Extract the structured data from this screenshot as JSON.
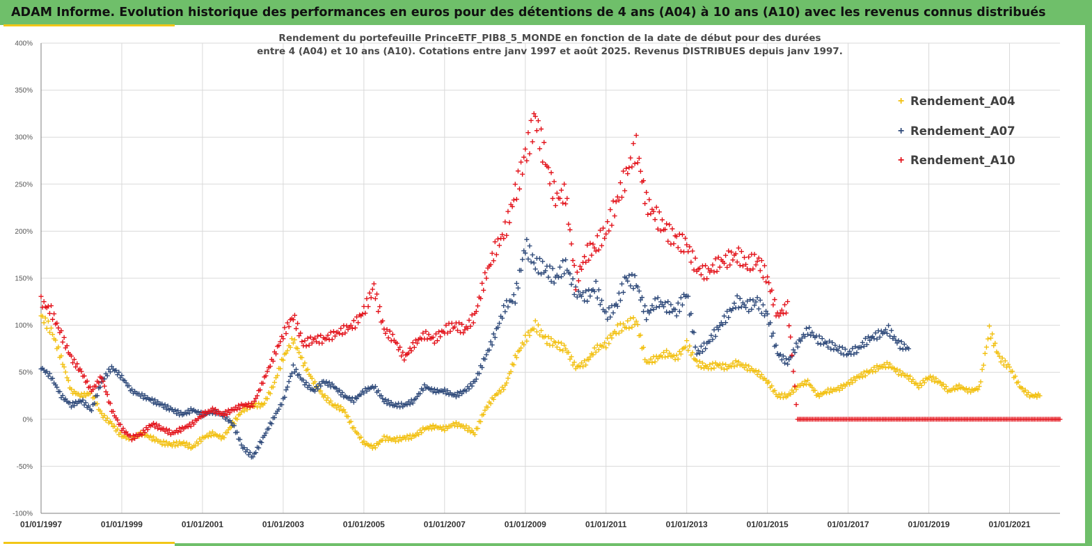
{
  "banner": {
    "title": "ADAM Informe. Evolution historique des performances en euros pour des détentions de 4 ans (A04) à 10 ans (A10) avec les revenus connus distribués"
  },
  "colors": {
    "banner": "#6fbf6a",
    "accent": "#f2c617",
    "series_a04": "#f2c010",
    "series_a07": "#2f4a7a",
    "series_a10": "#e3131b",
    "grid": "#d9d9d9"
  },
  "chart_data": {
    "type": "scatter",
    "title_lines": [
      "Rendement du portefeuille PrinceETF_PIB8_5_MONDE  en fonction de la date de début pour des durées",
      "entre 4 (A04) et 10 ans (A10). Cotations entre janv 1997 et août 2025. Revenus DISTRIBUES depuis janv 1997."
    ],
    "xlabel": "",
    "ylabel": "",
    "x_format": "date (year)",
    "xlim": [
      1997.0,
      2022.25
    ],
    "ylim": [
      -100,
      400
    ],
    "y_unit": "%",
    "y_ticks": [
      "400%",
      "350%",
      "300%",
      "250%",
      "200%",
      "150%",
      "100%",
      "50%",
      "0%",
      "-50%",
      "-100%"
    ],
    "x_ticks": [
      "01/01/1997",
      "01/01/1999",
      "01/01/2001",
      "01/01/2003",
      "01/01/2005",
      "01/01/2007",
      "01/01/2009",
      "01/01/2011",
      "01/01/2013",
      "01/01/2015",
      "01/01/2017",
      "01/01/2019",
      "01/01/2021"
    ],
    "grid": true,
    "legend_position": "top-right",
    "marker": "+",
    "series": [
      {
        "name": "Rendement_A04",
        "color": "#f2c010",
        "points": [
          [
            1997.0,
            110
          ],
          [
            1997.25,
            95
          ],
          [
            1997.5,
            65
          ],
          [
            1997.75,
            30
          ],
          [
            1998.0,
            25
          ],
          [
            1998.25,
            28
          ],
          [
            1998.5,
            5
          ],
          [
            1998.75,
            -5
          ],
          [
            1999.0,
            -18
          ],
          [
            1999.25,
            -20
          ],
          [
            1999.5,
            -15
          ],
          [
            1999.75,
            -20
          ],
          [
            2000.0,
            -25
          ],
          [
            2000.25,
            -27
          ],
          [
            2000.5,
            -25
          ],
          [
            2000.75,
            -30
          ],
          [
            2001.0,
            -20
          ],
          [
            2001.25,
            -15
          ],
          [
            2001.5,
            -20
          ],
          [
            2001.75,
            -5
          ],
          [
            2002.0,
            10
          ],
          [
            2002.25,
            15
          ],
          [
            2002.5,
            15
          ],
          [
            2002.75,
            35
          ],
          [
            2003.0,
            65
          ],
          [
            2003.25,
            85
          ],
          [
            2003.5,
            60
          ],
          [
            2003.75,
            40
          ],
          [
            2004.0,
            25
          ],
          [
            2004.25,
            15
          ],
          [
            2004.5,
            10
          ],
          [
            2004.75,
            -10
          ],
          [
            2005.0,
            -25
          ],
          [
            2005.25,
            -30
          ],
          [
            2005.5,
            -20
          ],
          [
            2005.75,
            -22
          ],
          [
            2006.0,
            -20
          ],
          [
            2006.25,
            -18
          ],
          [
            2006.5,
            -10
          ],
          [
            2006.75,
            -8
          ],
          [
            2007.0,
            -10
          ],
          [
            2007.25,
            -5
          ],
          [
            2007.5,
            -8
          ],
          [
            2007.75,
            -15
          ],
          [
            2008.0,
            10
          ],
          [
            2008.25,
            25
          ],
          [
            2008.5,
            35
          ],
          [
            2008.75,
            65
          ],
          [
            2009.0,
            85
          ],
          [
            2009.25,
            100
          ],
          [
            2009.5,
            85
          ],
          [
            2009.75,
            80
          ],
          [
            2010.0,
            75
          ],
          [
            2010.25,
            55
          ],
          [
            2010.5,
            60
          ],
          [
            2010.75,
            75
          ],
          [
            2011.0,
            80
          ],
          [
            2011.25,
            95
          ],
          [
            2011.5,
            100
          ],
          [
            2011.75,
            105
          ],
          [
            2012.0,
            60
          ],
          [
            2012.25,
            65
          ],
          [
            2012.5,
            70
          ],
          [
            2012.75,
            65
          ],
          [
            2013.0,
            80
          ],
          [
            2013.25,
            60
          ],
          [
            2013.5,
            55
          ],
          [
            2013.75,
            58
          ],
          [
            2014.0,
            55
          ],
          [
            2014.25,
            60
          ],
          [
            2014.5,
            55
          ],
          [
            2014.75,
            50
          ],
          [
            2015.0,
            40
          ],
          [
            2015.25,
            25
          ],
          [
            2015.5,
            25
          ],
          [
            2015.75,
            35
          ],
          [
            2016.0,
            40
          ],
          [
            2016.25,
            25
          ],
          [
            2016.5,
            30
          ],
          [
            2016.75,
            32
          ],
          [
            2017.0,
            38
          ],
          [
            2017.25,
            45
          ],
          [
            2017.5,
            50
          ],
          [
            2017.75,
            55
          ],
          [
            2018.0,
            58
          ],
          [
            2018.25,
            50
          ],
          [
            2018.5,
            45
          ],
          [
            2018.75,
            35
          ],
          [
            2019.0,
            45
          ],
          [
            2019.25,
            40
          ],
          [
            2019.5,
            30
          ],
          [
            2019.75,
            35
          ],
          [
            2020.0,
            30
          ],
          [
            2020.25,
            33
          ],
          [
            2020.5,
            95
          ],
          [
            2020.75,
            65
          ],
          [
            2021.0,
            55
          ],
          [
            2021.25,
            35
          ],
          [
            2021.5,
            25
          ],
          [
            2021.75,
            25
          ]
        ]
      },
      {
        "name": "Rendement_A07",
        "color": "#2f4a7a",
        "points": [
          [
            1997.0,
            55
          ],
          [
            1997.25,
            45
          ],
          [
            1997.5,
            25
          ],
          [
            1997.75,
            15
          ],
          [
            1998.0,
            20
          ],
          [
            1998.25,
            10
          ],
          [
            1998.5,
            40
          ],
          [
            1998.75,
            55
          ],
          [
            1999.0,
            45
          ],
          [
            1999.25,
            30
          ],
          [
            1999.5,
            25
          ],
          [
            1999.75,
            20
          ],
          [
            2000.0,
            15
          ],
          [
            2000.25,
            10
          ],
          [
            2000.5,
            5
          ],
          [
            2000.75,
            10
          ],
          [
            2001.0,
            5
          ],
          [
            2001.25,
            8
          ],
          [
            2001.5,
            5
          ],
          [
            2001.75,
            -5
          ],
          [
            2002.0,
            -30
          ],
          [
            2002.25,
            -40
          ],
          [
            2002.5,
            -20
          ],
          [
            2002.75,
            0
          ],
          [
            2003.0,
            20
          ],
          [
            2003.25,
            55
          ],
          [
            2003.5,
            40
          ],
          [
            2003.75,
            30
          ],
          [
            2004.0,
            40
          ],
          [
            2004.25,
            35
          ],
          [
            2004.5,
            25
          ],
          [
            2004.75,
            20
          ],
          [
            2005.0,
            30
          ],
          [
            2005.25,
            35
          ],
          [
            2005.5,
            20
          ],
          [
            2005.75,
            15
          ],
          [
            2006.0,
            15
          ],
          [
            2006.25,
            20
          ],
          [
            2006.5,
            35
          ],
          [
            2006.75,
            30
          ],
          [
            2007.0,
            30
          ],
          [
            2007.25,
            25
          ],
          [
            2007.5,
            30
          ],
          [
            2007.75,
            40
          ],
          [
            2008.0,
            65
          ],
          [
            2008.25,
            90
          ],
          [
            2008.5,
            120
          ],
          [
            2008.75,
            130
          ],
          [
            2009.0,
            185
          ],
          [
            2009.25,
            165
          ],
          [
            2009.5,
            160
          ],
          [
            2009.75,
            150
          ],
          [
            2010.0,
            165
          ],
          [
            2010.25,
            135
          ],
          [
            2010.5,
            130
          ],
          [
            2010.75,
            140
          ],
          [
            2011.0,
            110
          ],
          [
            2011.25,
            120
          ],
          [
            2011.5,
            150
          ],
          [
            2011.75,
            145
          ],
          [
            2012.0,
            110
          ],
          [
            2012.25,
            125
          ],
          [
            2012.5,
            120
          ],
          [
            2012.75,
            115
          ],
          [
            2013.0,
            135
          ],
          [
            2013.25,
            70
          ],
          [
            2013.5,
            80
          ],
          [
            2013.75,
            95
          ],
          [
            2014.0,
            110
          ],
          [
            2014.25,
            125
          ],
          [
            2014.5,
            120
          ],
          [
            2014.75,
            125
          ],
          [
            2015.0,
            110
          ],
          [
            2015.25,
            70
          ],
          [
            2015.5,
            60
          ],
          [
            2015.75,
            80
          ],
          [
            2016.0,
            95
          ],
          [
            2016.25,
            85
          ],
          [
            2016.5,
            80
          ],
          [
            2016.75,
            75
          ],
          [
            2017.0,
            70
          ],
          [
            2017.25,
            75
          ],
          [
            2017.5,
            85
          ],
          [
            2017.75,
            90
          ],
          [
            2018.0,
            95
          ],
          [
            2018.25,
            80
          ],
          [
            2018.5,
            75
          ]
        ]
      },
      {
        "name": "Rendement_A10",
        "color": "#e3131b",
        "points": [
          [
            1997.0,
            125
          ],
          [
            1997.25,
            115
          ],
          [
            1997.5,
            90
          ],
          [
            1997.75,
            65
          ],
          [
            1998.0,
            50
          ],
          [
            1998.25,
            30
          ],
          [
            1998.5,
            45
          ],
          [
            1998.75,
            10
          ],
          [
            1999.0,
            -10
          ],
          [
            1999.25,
            -20
          ],
          [
            1999.5,
            -15
          ],
          [
            1999.75,
            -5
          ],
          [
            2000.0,
            -10
          ],
          [
            2000.25,
            -15
          ],
          [
            2000.5,
            -10
          ],
          [
            2000.75,
            -5
          ],
          [
            2001.0,
            5
          ],
          [
            2001.25,
            10
          ],
          [
            2001.5,
            5
          ],
          [
            2001.75,
            10
          ],
          [
            2002.0,
            15
          ],
          [
            2002.25,
            15
          ],
          [
            2002.5,
            40
          ],
          [
            2002.75,
            65
          ],
          [
            2003.0,
            90
          ],
          [
            2003.25,
            110
          ],
          [
            2003.5,
            80
          ],
          [
            2003.75,
            85
          ],
          [
            2004.0,
            85
          ],
          [
            2004.25,
            90
          ],
          [
            2004.5,
            95
          ],
          [
            2004.75,
            100
          ],
          [
            2005.0,
            115
          ],
          [
            2005.25,
            140
          ],
          [
            2005.5,
            95
          ],
          [
            2005.75,
            85
          ],
          [
            2006.0,
            65
          ],
          [
            2006.25,
            80
          ],
          [
            2006.5,
            90
          ],
          [
            2006.75,
            85
          ],
          [
            2007.0,
            95
          ],
          [
            2007.25,
            100
          ],
          [
            2007.5,
            95
          ],
          [
            2007.75,
            110
          ],
          [
            2008.0,
            150
          ],
          [
            2008.25,
            180
          ],
          [
            2008.5,
            200
          ],
          [
            2008.75,
            240
          ],
          [
            2009.0,
            280
          ],
          [
            2009.25,
            320
          ],
          [
            2009.5,
            275
          ],
          [
            2009.75,
            235
          ],
          [
            2010.0,
            240
          ],
          [
            2010.25,
            145
          ],
          [
            2010.5,
            175
          ],
          [
            2010.75,
            185
          ],
          [
            2011.0,
            200
          ],
          [
            2011.25,
            230
          ],
          [
            2011.5,
            260
          ],
          [
            2011.75,
            290
          ],
          [
            2012.0,
            230
          ],
          [
            2012.25,
            215
          ],
          [
            2012.5,
            200
          ],
          [
            2012.75,
            190
          ],
          [
            2013.0,
            185
          ],
          [
            2013.25,
            160
          ],
          [
            2013.5,
            155
          ],
          [
            2013.75,
            165
          ],
          [
            2014.0,
            170
          ],
          [
            2014.25,
            175
          ],
          [
            2014.5,
            165
          ],
          [
            2014.75,
            170
          ],
          [
            2015.0,
            150
          ],
          [
            2015.25,
            110
          ],
          [
            2015.5,
            120
          ],
          [
            2015.75,
            0
          ],
          [
            2016.0,
            0
          ],
          [
            2016.5,
            0
          ],
          [
            2017.0,
            0
          ],
          [
            2017.5,
            0
          ],
          [
            2018.0,
            0
          ],
          [
            2018.5,
            0
          ],
          [
            2019.0,
            0
          ],
          [
            2019.5,
            0
          ],
          [
            2020.0,
            0
          ],
          [
            2020.5,
            0
          ],
          [
            2021.0,
            0
          ],
          [
            2021.5,
            0
          ],
          [
            2022.0,
            0
          ],
          [
            2022.25,
            0
          ]
        ]
      }
    ]
  }
}
